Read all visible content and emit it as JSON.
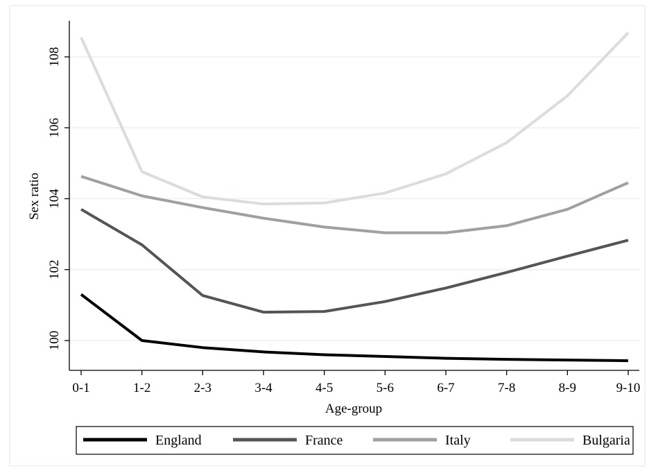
{
  "chart_data": {
    "type": "line",
    "title": "",
    "xlabel": "Age-group",
    "ylabel": "Sex ratio",
    "categories": [
      "0-1",
      "1-2",
      "2-3",
      "3-4",
      "4-5",
      "5-6",
      "6-7",
      "7-8",
      "8-9",
      "9-10"
    ],
    "ylim": [
      99.2,
      109
    ],
    "yticks": [
      100,
      102,
      104,
      106,
      108
    ],
    "ytick_labels": [
      "100",
      "102",
      "104",
      "106",
      "108"
    ],
    "grid": true,
    "legend_position": "bottom",
    "series": [
      {
        "name": "England",
        "color": "#000000",
        "values": [
          101.3,
          100.0,
          99.8,
          99.68,
          99.6,
          99.55,
          99.5,
          99.47,
          99.45,
          99.43
        ]
      },
      {
        "name": "France",
        "color": "#555555",
        "values": [
          103.7,
          102.7,
          101.27,
          100.8,
          100.82,
          101.1,
          101.48,
          101.92,
          102.38,
          102.83
        ]
      },
      {
        "name": "Italy",
        "color": "#a0a0a0",
        "values": [
          104.63,
          104.08,
          103.75,
          103.45,
          103.2,
          103.04,
          103.04,
          103.24,
          103.7,
          104.45
        ]
      },
      {
        "name": "Bulgaria",
        "color": "#dcdcdc",
        "values": [
          108.55,
          104.76,
          104.05,
          103.85,
          103.88,
          104.16,
          104.7,
          105.58,
          106.9,
          108.68
        ]
      }
    ]
  }
}
